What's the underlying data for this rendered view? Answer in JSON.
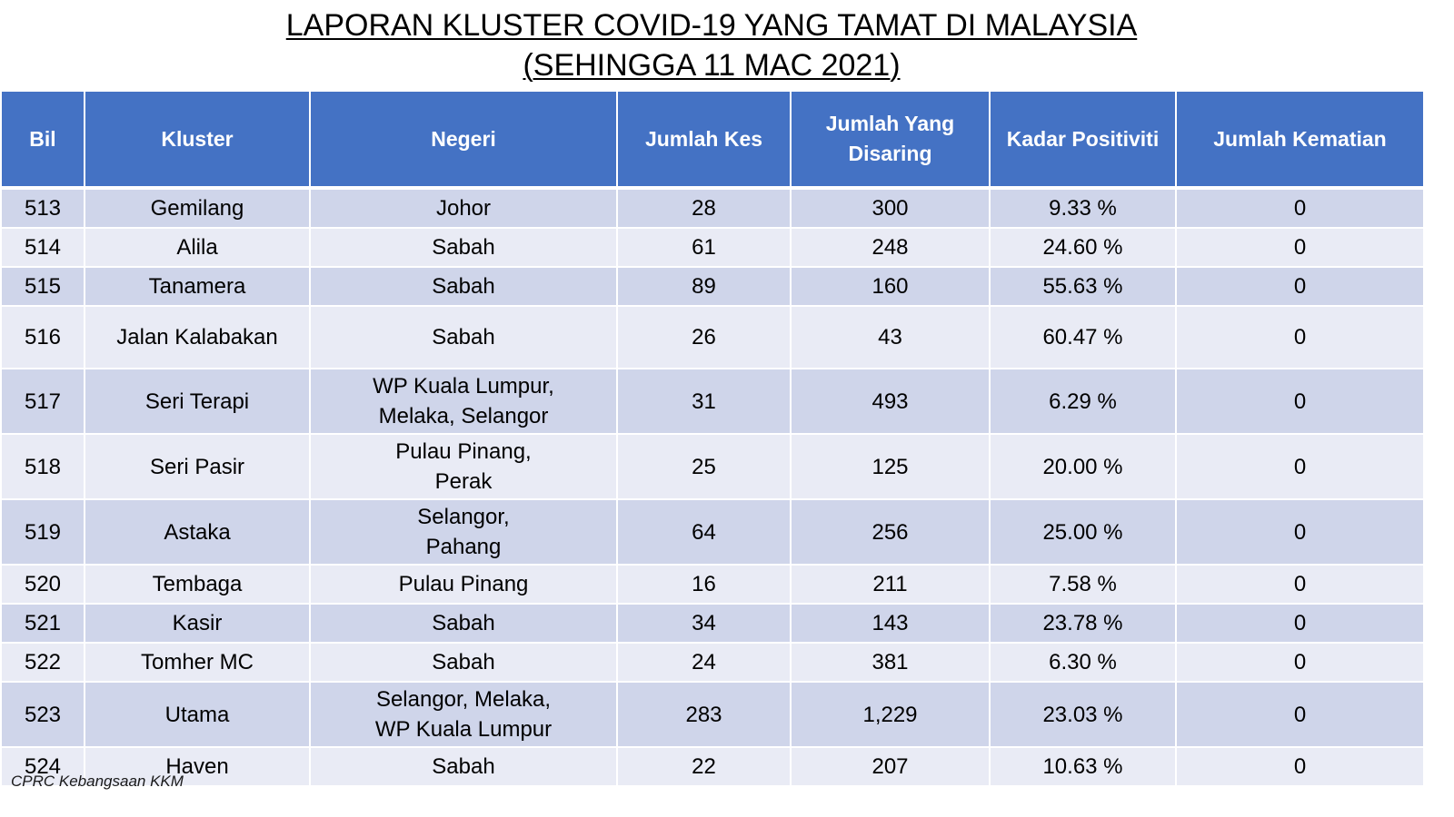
{
  "title": {
    "line1": "LAPORAN KLUSTER COVID-19 YANG TAMAT DI MALAYSIA",
    "line2": "(SEHINGGA 11 MAC 2021)"
  },
  "table": {
    "headers": {
      "bil": "Bil",
      "kluster": "Kluster",
      "negeri": "Negeri",
      "jumlah_kes": "Jumlah Kes",
      "jumlah_disaring_line1": "Jumlah Yang",
      "jumlah_disaring_line2": "Disaring",
      "kadar_positiviti": "Kadar Positiviti",
      "jumlah_kematian": "Jumlah Kematian"
    },
    "rows": [
      {
        "bil": "513",
        "kluster": "Gemilang",
        "negeri": [
          "Johor"
        ],
        "kes": "28",
        "disaring": "300",
        "positiviti": "9.33 %",
        "kematian": "0"
      },
      {
        "bil": "514",
        "kluster": "Alila",
        "negeri": [
          "Sabah"
        ],
        "kes": "61",
        "disaring": "248",
        "positiviti": "24.60 %",
        "kematian": "0"
      },
      {
        "bil": "515",
        "kluster": "Tanamera",
        "negeri": [
          "Sabah"
        ],
        "kes": "89",
        "disaring": "160",
        "positiviti": "55.63 %",
        "kematian": "0"
      },
      {
        "bil": "516",
        "kluster": "Jalan Kalabakan",
        "negeri": [
          "Sabah"
        ],
        "kes": "26",
        "disaring": "43",
        "positiviti": "60.47 %",
        "kematian": "0"
      },
      {
        "bil": "517",
        "kluster": "Seri Terapi",
        "negeri": [
          "WP Kuala Lumpur,",
          "Melaka, Selangor"
        ],
        "kes": "31",
        "disaring": "493",
        "positiviti": "6.29 %",
        "kematian": "0"
      },
      {
        "bil": "518",
        "kluster": "Seri Pasir",
        "negeri": [
          "Pulau Pinang,",
          "Perak"
        ],
        "kes": "25",
        "disaring": "125",
        "positiviti": "20.00 %",
        "kematian": "0"
      },
      {
        "bil": "519",
        "kluster": "Astaka",
        "negeri": [
          "Selangor,",
          "Pahang"
        ],
        "kes": "64",
        "disaring": "256",
        "positiviti": "25.00 %",
        "kematian": "0"
      },
      {
        "bil": "520",
        "kluster": "Tembaga",
        "negeri": [
          "Pulau Pinang"
        ],
        "kes": "16",
        "disaring": "211",
        "positiviti": "7.58 %",
        "kematian": "0"
      },
      {
        "bil": "521",
        "kluster": "Kasir",
        "negeri": [
          "Sabah"
        ],
        "kes": "34",
        "disaring": "143",
        "positiviti": "23.78 %",
        "kematian": "0"
      },
      {
        "bil": "522",
        "kluster": "Tomher MC",
        "negeri": [
          "Sabah"
        ],
        "kes": "24",
        "disaring": "381",
        "positiviti": "6.30 %",
        "kematian": "0"
      },
      {
        "bil": "523",
        "kluster": "Utama",
        "negeri": [
          "Selangor, Melaka,",
          "WP Kuala Lumpur"
        ],
        "kes": "283",
        "disaring": "1,229",
        "positiviti": "23.03 %",
        "kematian": "0"
      },
      {
        "bil": "524",
        "kluster": "Haven",
        "negeri": [
          "Sabah"
        ],
        "kes": "22",
        "disaring": "207",
        "positiviti": "10.63 %",
        "kematian": "0"
      }
    ]
  },
  "footer": {
    "source": "CPRC Kebangsaan KKM"
  },
  "colors": {
    "header_bg": "#4472c4",
    "row_dark": "#cfd5ea",
    "row_light": "#e9ebf5"
  }
}
